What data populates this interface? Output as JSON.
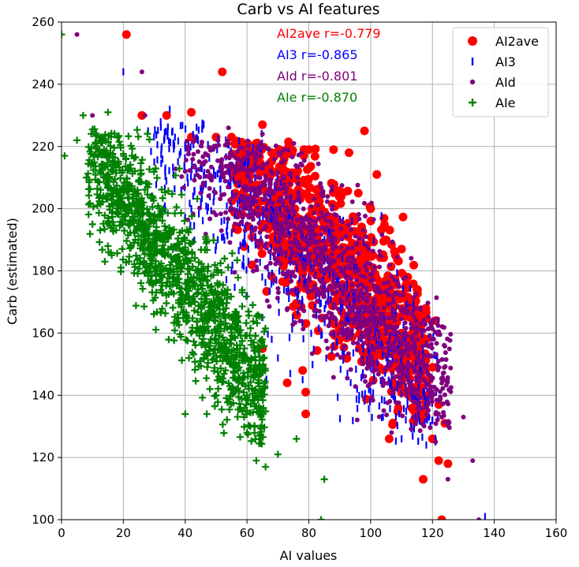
{
  "chart_data": {
    "type": "scatter",
    "title": "Carb vs AI features",
    "xlabel": "AI values",
    "ylabel": "Carb (estimated)",
    "xlim": [
      0,
      160
    ],
    "ylim": [
      100,
      260
    ],
    "xticks": [
      0,
      20,
      40,
      60,
      80,
      100,
      120,
      140,
      160
    ],
    "yticks": [
      100,
      120,
      140,
      160,
      180,
      200,
      220,
      240,
      260
    ],
    "grid": true,
    "legend_position": "top-right",
    "series": [
      {
        "name": "AI2ave",
        "color": "#ff0000",
        "marker": "circle",
        "r": -0.779,
        "annotation": "AI2ave r=-0.779",
        "points": [
          [
            21,
            256
          ],
          [
            52,
            244
          ],
          [
            42,
            231
          ],
          [
            26,
            230
          ],
          [
            34,
            230
          ],
          [
            98,
            225
          ],
          [
            65,
            227
          ],
          [
            102,
            211
          ],
          [
            110,
            187
          ],
          [
            121,
            164
          ],
          [
            125,
            118
          ],
          [
            117,
            113
          ],
          [
            122,
            119
          ],
          [
            123,
            100
          ],
          [
            106,
            126
          ],
          [
            79,
            134
          ],
          [
            79,
            141
          ],
          [
            78,
            148
          ],
          [
            73,
            144
          ],
          [
            65,
            155
          ],
          [
            42,
            223
          ],
          [
            50,
            223
          ],
          [
            55,
            223
          ],
          [
            58,
            220
          ],
          [
            63,
            221
          ],
          [
            68,
            218
          ],
          [
            72,
            216
          ],
          [
            80,
            219
          ],
          [
            88,
            219
          ],
          [
            93,
            218
          ],
          [
            112,
            178
          ],
          [
            115,
            174
          ],
          [
            118,
            158
          ],
          [
            120,
            149
          ],
          [
            122,
            137
          ],
          [
            124,
            131
          ],
          [
            120,
            126
          ],
          [
            110,
            160
          ],
          [
            105,
            190
          ],
          [
            100,
            200
          ],
          [
            96,
            205
          ],
          [
            108,
            185
          ],
          [
            112,
            170
          ],
          [
            116,
            154
          ],
          [
            119,
            145
          ]
        ],
        "cloud": {
          "x": [
            55,
            118
          ],
          "y": [
            130,
            222
          ],
          "slope": -1.15,
          "intercept": 285,
          "spread": 14,
          "n": 900,
          "seed": 11
        }
      },
      {
        "name": "AI3",
        "color": "#0000ff",
        "marker": "vline",
        "r": -0.865,
        "annotation": "AI3 r=-0.865",
        "points": [
          [
            20,
            244
          ],
          [
            35,
            232
          ],
          [
            28,
            225
          ],
          [
            30,
            215
          ],
          [
            45,
            213
          ],
          [
            42,
            200
          ],
          [
            47,
            190
          ],
          [
            50,
            188
          ],
          [
            55,
            180
          ],
          [
            60,
            172
          ],
          [
            65,
            165
          ],
          [
            68,
            158
          ],
          [
            70,
            152
          ],
          [
            74,
            147
          ],
          [
            78,
            145
          ],
          [
            104,
            133
          ],
          [
            110,
            126
          ],
          [
            113,
            130
          ],
          [
            118,
            124
          ],
          [
            137,
            101
          ],
          [
            121,
            125
          ],
          [
            120,
            132
          ]
        ],
        "cloud": {
          "x": [
            28,
            122
          ],
          "y": [
            125,
            228
          ],
          "slope": -1.05,
          "intercept": 262,
          "spread": 13,
          "n": 700,
          "seed": 23
        }
      },
      {
        "name": "AId",
        "color": "#800080",
        "marker": "smallcircle",
        "r": -0.801,
        "annotation": "AId r=-0.801",
        "points": [
          [
            5,
            256
          ],
          [
            26,
            244
          ],
          [
            10,
            230
          ],
          [
            27,
            230
          ],
          [
            54,
            226
          ],
          [
            65,
            224
          ],
          [
            135,
            100
          ],
          [
            123,
            133
          ],
          [
            133,
            119
          ],
          [
            130,
            133
          ],
          [
            125,
            113
          ],
          [
            121,
            125
          ],
          [
            115,
            145
          ],
          [
            110,
            150
          ],
          [
            48,
            210
          ],
          [
            40,
            212
          ],
          [
            45,
            205
          ],
          [
            50,
            198
          ]
        ],
        "cloud": {
          "x": [
            36,
            126
          ],
          "y": [
            128,
            222
          ],
          "slope": -1.1,
          "intercept": 276,
          "spread": 13,
          "n": 1400,
          "seed": 37
        }
      },
      {
        "name": "AIe",
        "color": "#008000",
        "marker": "plus",
        "r": -0.87,
        "annotation": "AIe r=-0.870",
        "points": [
          [
            0,
            256
          ],
          [
            1,
            217
          ],
          [
            7,
            230
          ],
          [
            15,
            231
          ],
          [
            5,
            222
          ],
          [
            10,
            195
          ],
          [
            15,
            188
          ],
          [
            25,
            196
          ],
          [
            14,
            183
          ],
          [
            40,
            134
          ],
          [
            47,
            134
          ],
          [
            64,
            126
          ],
          [
            64,
            127
          ],
          [
            63,
            119
          ],
          [
            66,
            117
          ],
          [
            70,
            121
          ],
          [
            76,
            126
          ],
          [
            85,
            113
          ],
          [
            84,
            100
          ],
          [
            60,
            128
          ],
          [
            60,
            140
          ],
          [
            55,
            150
          ],
          [
            50,
            140
          ],
          [
            48,
            142
          ]
        ],
        "cloud": {
          "x": [
            8,
            66
          ],
          "y": [
            124,
            226
          ],
          "slope": -1.35,
          "intercept": 230,
          "spread": 11,
          "n": 1300,
          "seed": 53
        }
      }
    ]
  }
}
